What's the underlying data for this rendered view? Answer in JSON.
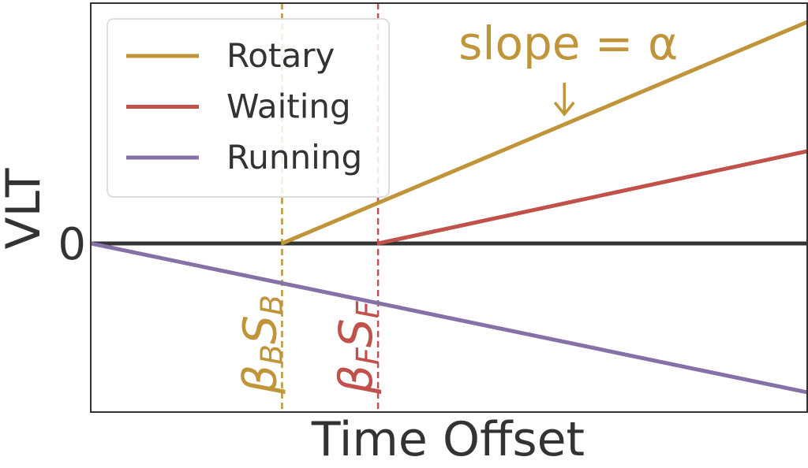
{
  "chart_data": {
    "type": "line",
    "xlabel": "Time Offset",
    "ylabel": "VLT",
    "xlim": [
      0,
      1
    ],
    "ylim": [
      -1,
      1.425
    ],
    "yticks": [
      0
    ],
    "zero_line": true,
    "legend": "upper left",
    "series": [
      {
        "name": "Rotary",
        "color": "#c0953a",
        "x": [
          0.267,
          1
        ],
        "values": [
          0,
          1.313
        ]
      },
      {
        "name": "Waiting",
        "color": "#c0524a",
        "x": [
          0.401,
          1
        ],
        "values": [
          0,
          0.547
        ]
      },
      {
        "name": "Running",
        "color": "#8571a8",
        "x": [
          0,
          1
        ],
        "values": [
          0,
          -0.883
        ]
      }
    ],
    "markers": [
      {
        "x": 0.267,
        "color": "#c0953a",
        "label": [
          "β",
          "B",
          "S",
          "B"
        ]
      },
      {
        "x": 0.401,
        "color": "#c0524a",
        "label": [
          "β",
          "F",
          "S",
          "F"
        ]
      }
    ],
    "annotation": {
      "text": "slope =  α",
      "x": 0.661,
      "color": "#c0953a"
    }
  }
}
